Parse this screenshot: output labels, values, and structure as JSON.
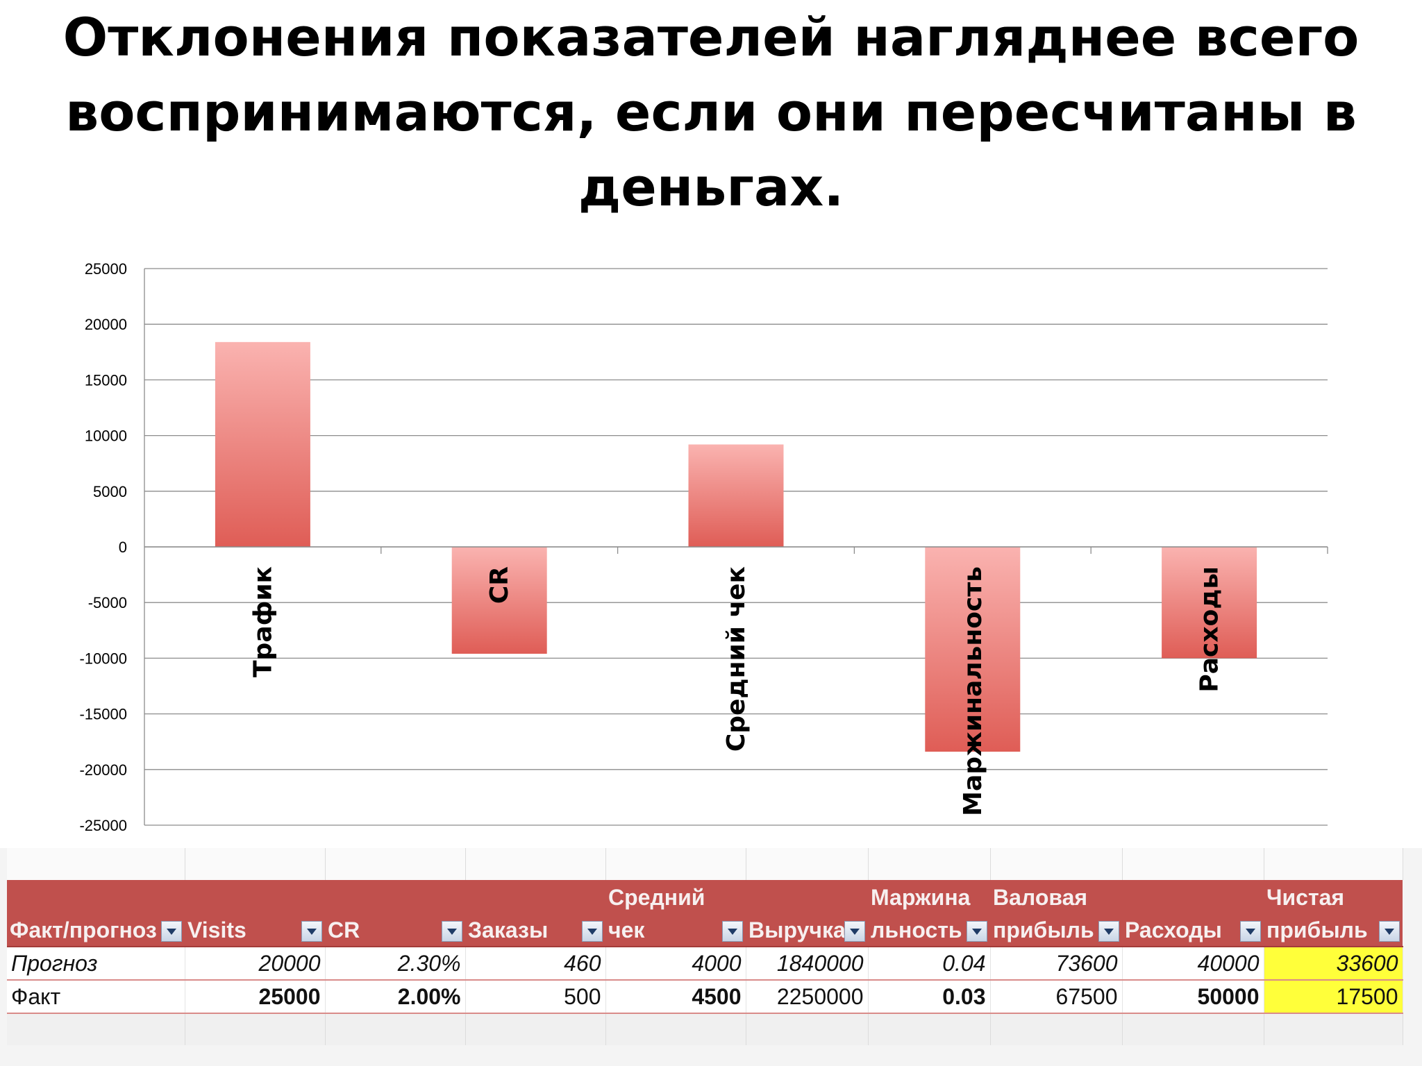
{
  "title_lines": [
    "Отклонения показателей нагляднее всего",
    "воспринимаются, если они пересчитаны в",
    "деньгах."
  ],
  "chart_data": {
    "type": "bar",
    "categories": [
      "Трафик",
      "CR",
      "Средний чек",
      "Маржинальность",
      "Расходы"
    ],
    "values": [
      18400,
      -9600,
      9200,
      -18400,
      -10000
    ],
    "ylim": [
      -25000,
      25000
    ],
    "yticks": [
      "25000",
      "20000",
      "15000",
      "10000",
      "5000",
      "0",
      "-5000",
      "-10000",
      "-15000",
      "-20000",
      "-25000"
    ],
    "grid": true,
    "legend": "none",
    "bar_colors": [
      "#fab3b0",
      "#df5d56"
    ]
  },
  "table": {
    "header_top": [
      "",
      "",
      "",
      "",
      "Средний",
      "",
      "Маржина",
      "Валовая",
      "",
      "Чистая"
    ],
    "header_bottom": [
      "Факт/прогноз",
      "Visits",
      "CR",
      "Заказы",
      "чек",
      "Выручка",
      "льность",
      "прибыль",
      "Расходы",
      "прибыль"
    ],
    "rows": [
      {
        "cells": [
          "Прогноз",
          "20000",
          "2.30%",
          "460",
          "4000",
          "1840000",
          "0.04",
          "73600",
          "40000",
          "33600"
        ]
      },
      {
        "cells": [
          "Факт",
          "25000",
          "2.00%",
          "500",
          "4500",
          "2250000",
          "0.03",
          "67500",
          "50000",
          "17500"
        ]
      }
    ],
    "highlight_color": "#ffff3a",
    "header_color": "#c0504d"
  }
}
